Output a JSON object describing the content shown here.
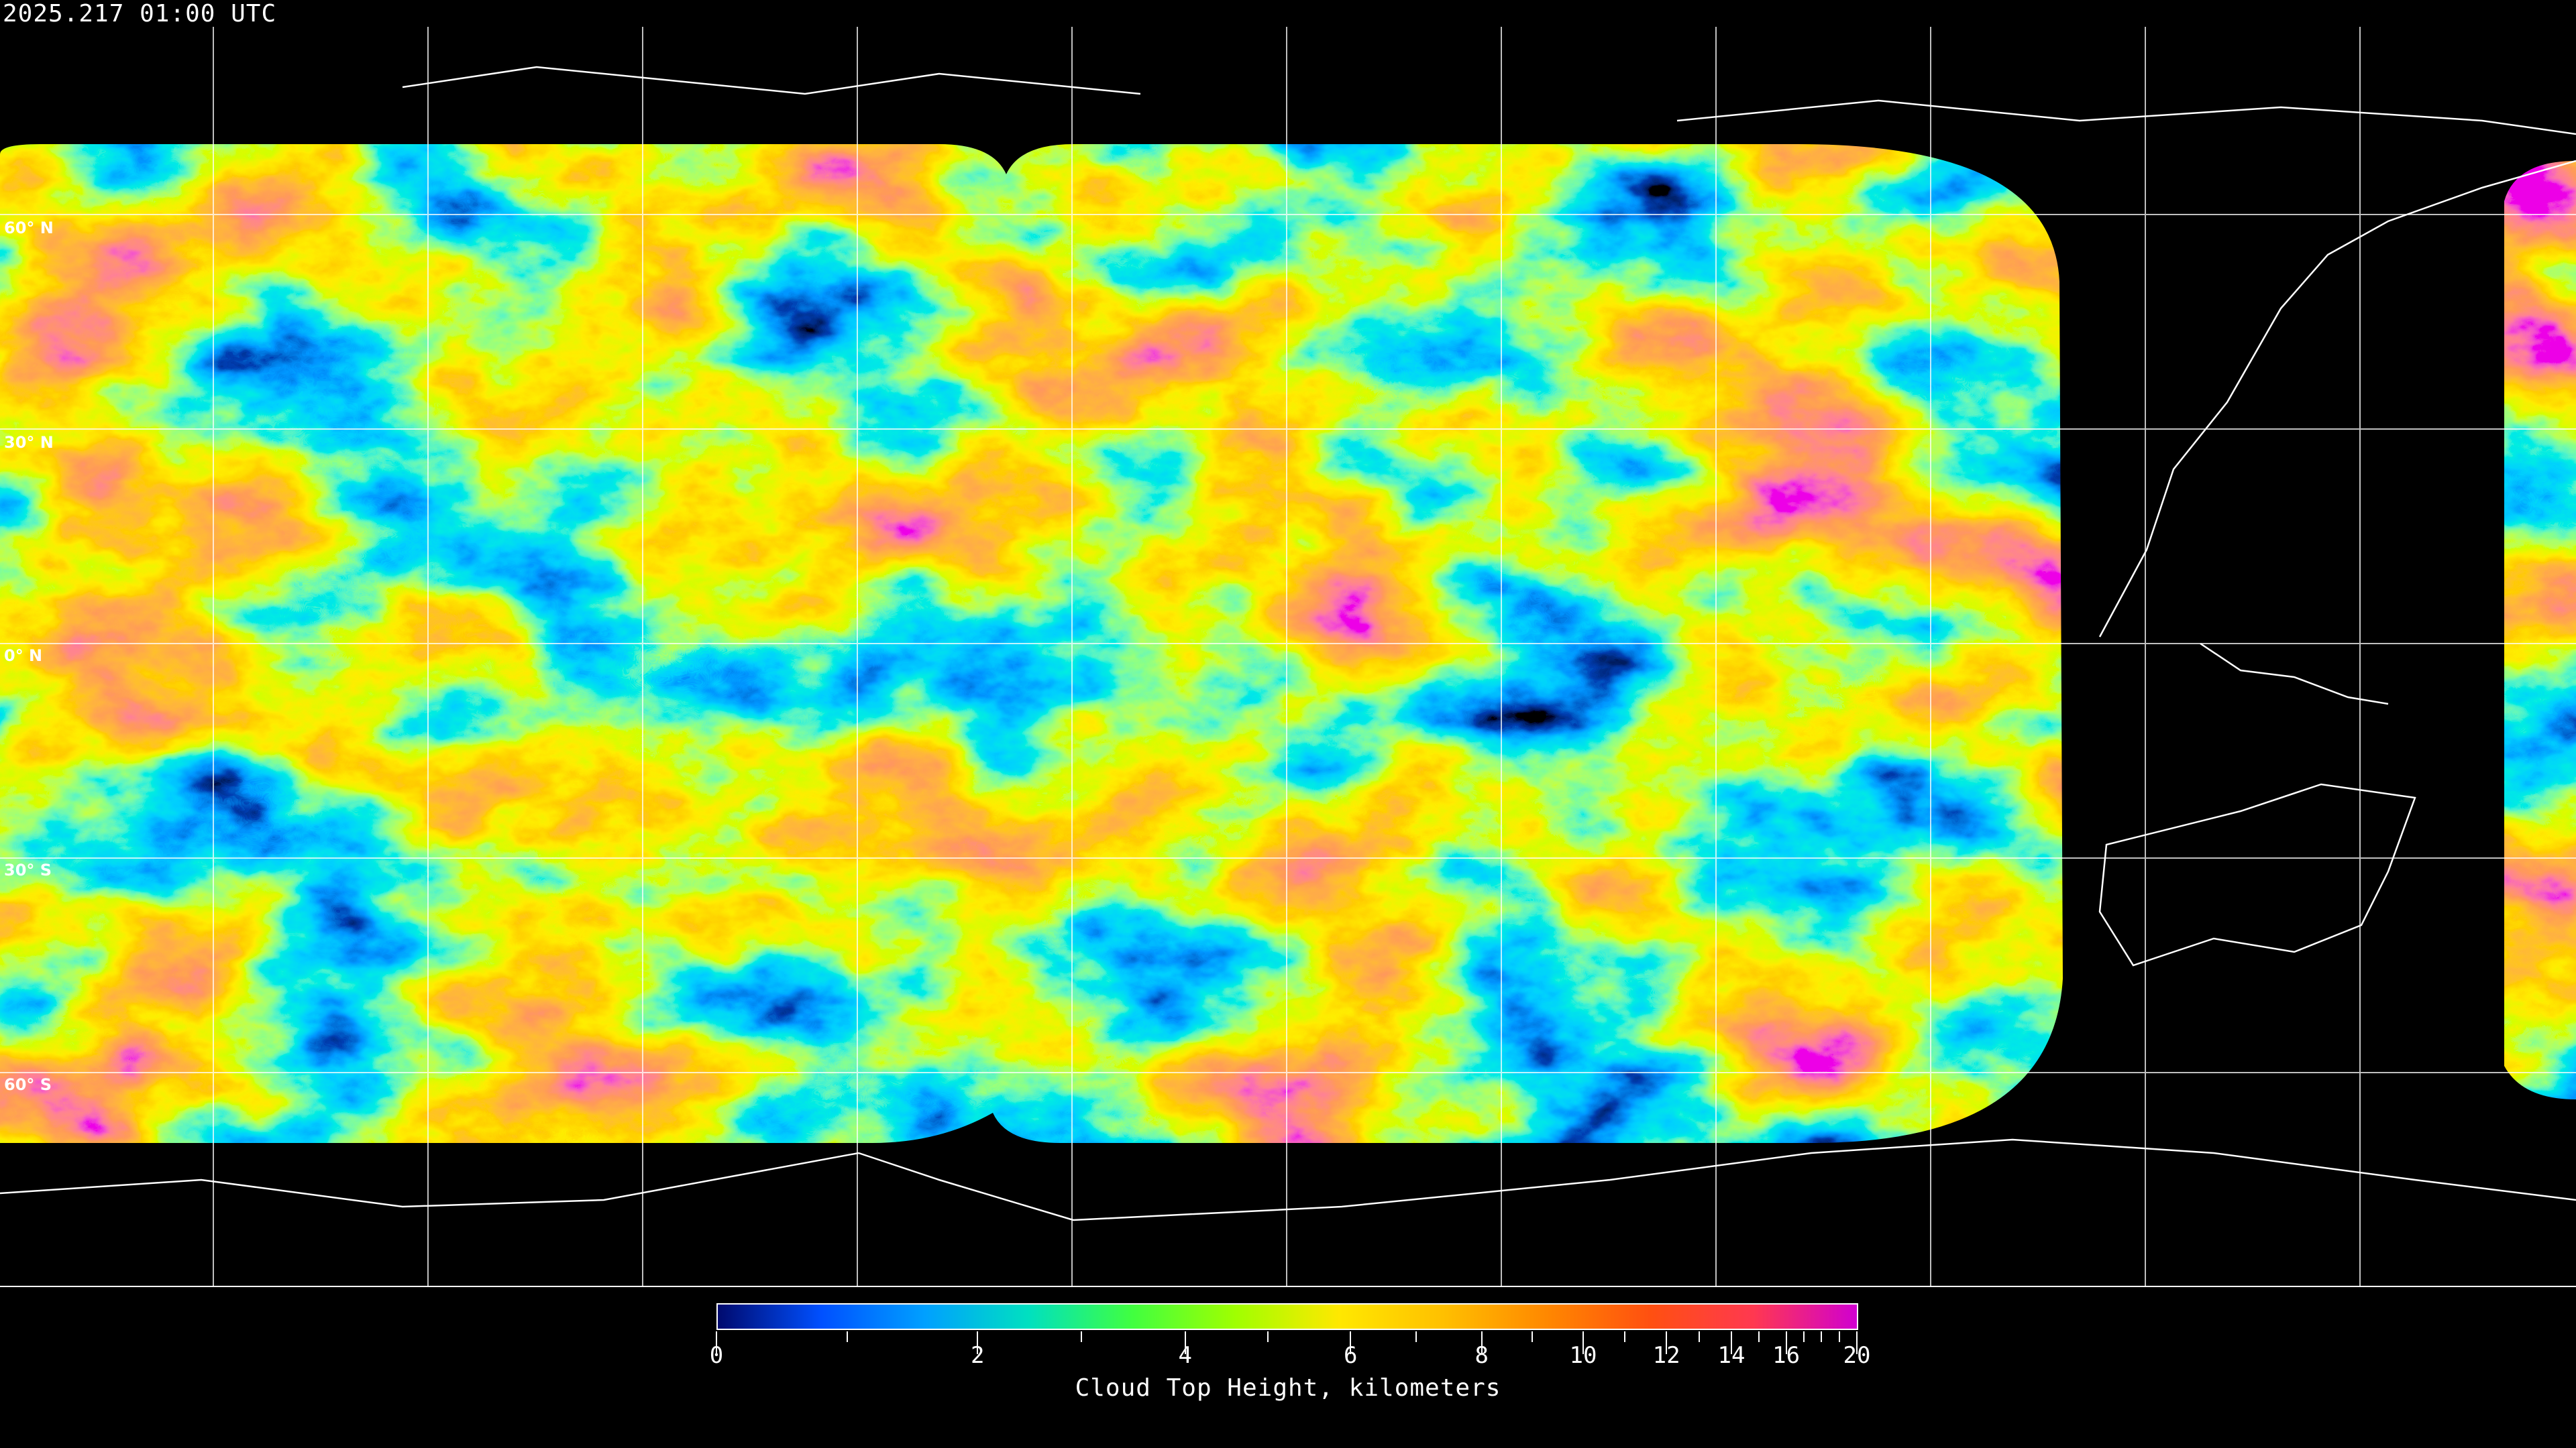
{
  "title": "2025.217 01:00 UTC",
  "latitude_labels": [
    "60° N",
    "30° N",
    "0° N",
    "30° S",
    "60° S"
  ],
  "colorbar": {
    "label": "Cloud Top Height, kilometers",
    "min": 0,
    "max": 20,
    "ticks": [
      "0",
      "2",
      "4",
      "6",
      "8",
      "10",
      "12",
      "14",
      "16",
      "20"
    ],
    "colors": [
      "#000a6e",
      "#0050ff",
      "#00a0ff",
      "#00e0c0",
      "#40ff40",
      "#a0ff00",
      "#ffe800",
      "#ffc000",
      "#ff8800",
      "#ff5010",
      "#ff3850",
      "#d000d0"
    ]
  },
  "map": {
    "projection": "equirectangular",
    "graticule_spacing_degrees": 30,
    "background": "#000000",
    "coastline_color": "#ffffff"
  }
}
